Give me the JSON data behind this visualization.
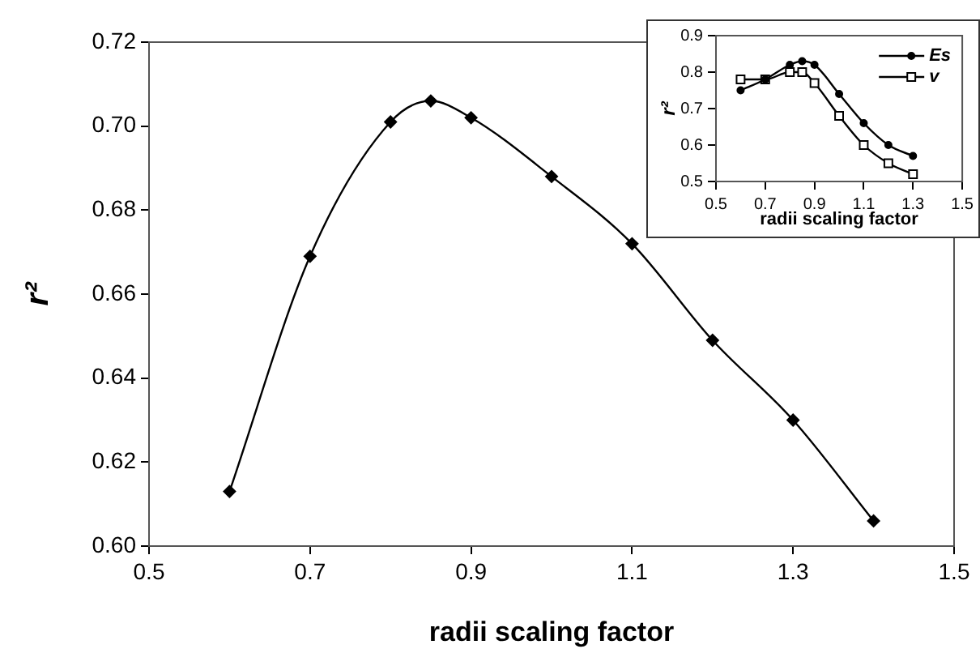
{
  "chart_data": [
    {
      "type": "line",
      "xlabel": "radii scaling factor",
      "ylabel": "r²",
      "x": [
        0.6,
        0.7,
        0.8,
        0.85,
        0.9,
        1.0,
        1.1,
        1.2,
        1.3,
        1.4
      ],
      "series": [
        {
          "color": "#000000",
          "values": [
            0.613,
            0.669,
            0.701,
            0.706,
            0.702,
            0.688,
            0.672,
            0.649,
            0.63,
            0.606
          ]
        }
      ],
      "xlim": [
        0.5,
        1.5
      ],
      "xticks": [
        0.5,
        0.7,
        0.9,
        1.1,
        1.3,
        1.5
      ],
      "ylim": [
        0.6,
        0.72
      ],
      "yticks": [
        {
          "value": 0.6,
          "label": "0.60"
        },
        {
          "value": 0.62,
          "label": "0.62"
        },
        {
          "value": 0.64,
          "label": "0.64"
        },
        {
          "value": 0.66,
          "label": "0.66"
        },
        {
          "value": 0.68,
          "label": "0.68"
        },
        {
          "value": 0.7,
          "label": "0.70"
        },
        {
          "value": 0.72,
          "label": "0.72"
        }
      ],
      "grid": false,
      "legend": false,
      "marker": "diamond",
      "line_style": "solid"
    },
    {
      "type": "line",
      "xlabel": "radii scaling factor",
      "ylabel": "r²",
      "x": [
        0.6,
        0.7,
        0.8,
        0.85,
        0.9,
        1.0,
        1.1,
        1.2,
        1.3
      ],
      "series": [
        {
          "name": "Es",
          "color": "#000000",
          "marker": "circle",
          "values": [
            0.75,
            0.78,
            0.82,
            0.83,
            0.82,
            0.74,
            0.66,
            0.6,
            0.57
          ]
        },
        {
          "name": "v",
          "color": "#000000",
          "marker": "square",
          "values": [
            0.78,
            0.78,
            0.8,
            0.8,
            0.77,
            0.68,
            0.6,
            0.55,
            0.52
          ]
        }
      ],
      "xlim": [
        0.5,
        1.5
      ],
      "xticks": [
        0.5,
        0.7,
        0.9,
        1.1,
        1.3,
        1.5
      ],
      "ylim": [
        0.5,
        0.9
      ],
      "yticks": [
        0.5,
        0.6,
        0.7,
        0.8,
        0.9
      ],
      "grid": false,
      "legend": "top right",
      "line_style": "solid"
    }
  ]
}
